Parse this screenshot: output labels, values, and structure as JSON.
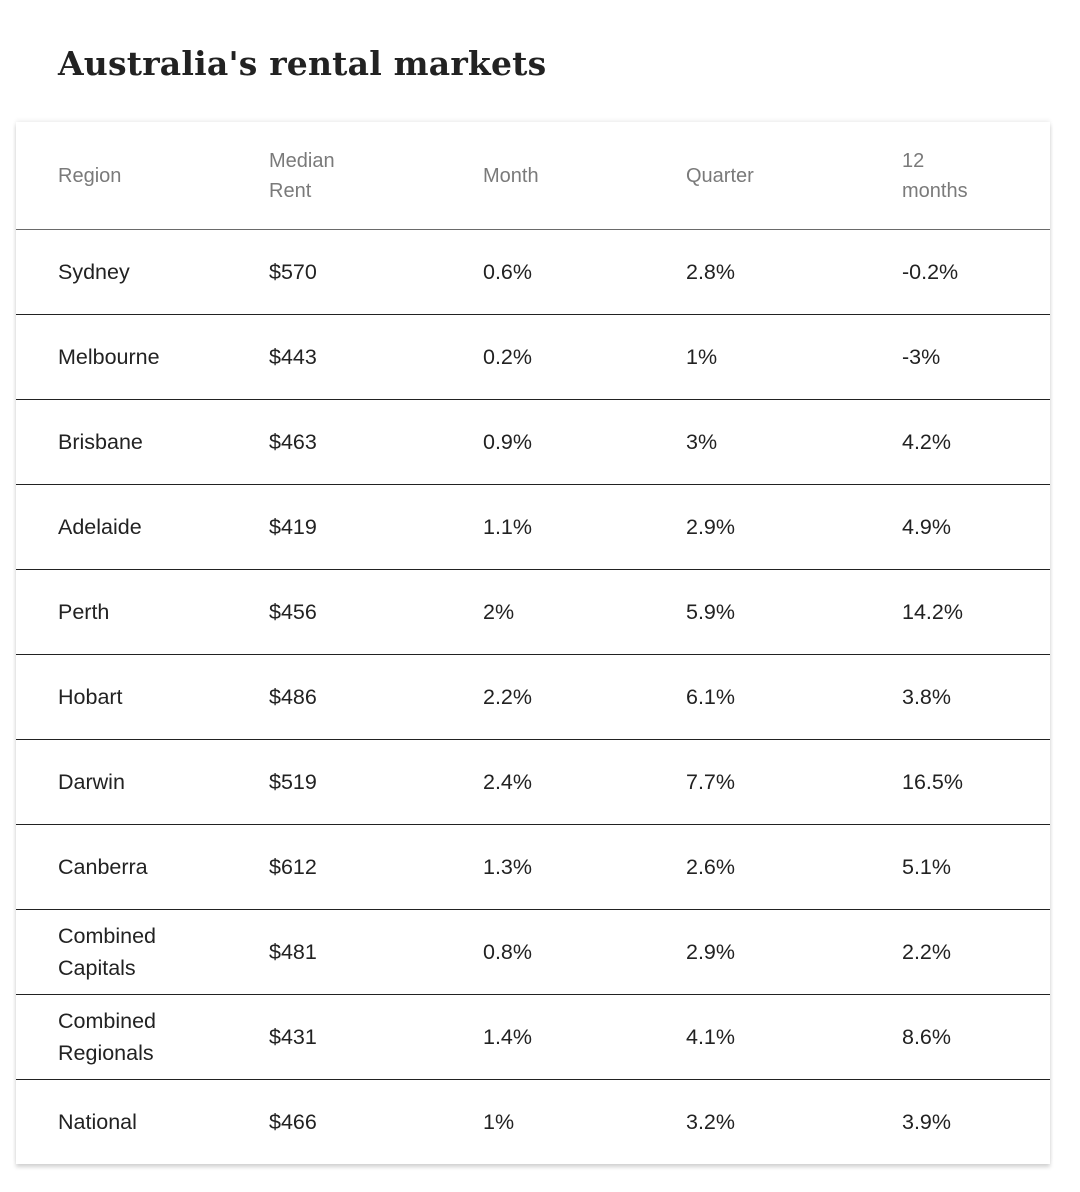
{
  "title": "Australia's rental markets",
  "chart_data": {
    "type": "table",
    "title": "Australia's rental markets",
    "columns": [
      "Region",
      "Median Rent",
      "Month",
      "Quarter",
      "12 months"
    ],
    "rows": [
      [
        "Sydney",
        "$570",
        "0.6%",
        "2.8%",
        "-0.2%"
      ],
      [
        "Melbourne",
        "$443",
        "0.2%",
        "1%",
        "-3%"
      ],
      [
        "Brisbane",
        "$463",
        "0.9%",
        "3%",
        "4.2%"
      ],
      [
        "Adelaide",
        "$419",
        "1.1%",
        "2.9%",
        "4.9%"
      ],
      [
        "Perth",
        "$456",
        "2%",
        "5.9%",
        "14.2%"
      ],
      [
        "Hobart",
        "$486",
        "2.2%",
        "6.1%",
        "3.8%"
      ],
      [
        "Darwin",
        "$519",
        "2.4%",
        "7.7%",
        "16.5%"
      ],
      [
        "Canberra",
        "$612",
        "1.3%",
        "2.6%",
        "5.1%"
      ],
      [
        "Combined Capitals",
        "$481",
        "0.8%",
        "2.9%",
        "2.2%"
      ],
      [
        "Combined Regionals",
        "$431",
        "1.4%",
        "4.1%",
        "8.6%"
      ],
      [
        "National",
        "$466",
        "1%",
        "3.2%",
        "3.9%"
      ]
    ]
  }
}
